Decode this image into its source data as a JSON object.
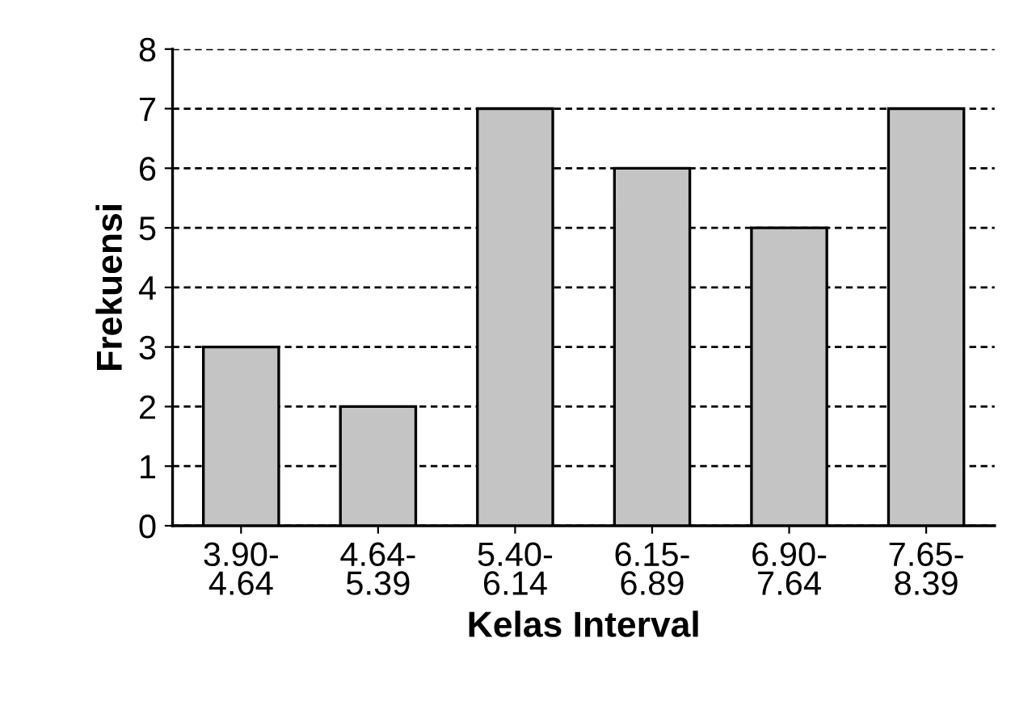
{
  "chart_data": {
    "type": "bar",
    "xlabel": "Kelas Interval",
    "ylabel": "Frekuensi",
    "categories": [
      "3.90-\n4.64",
      "4.64-\n5.39",
      "5.40-\n6.14",
      "6.15-\n6.89",
      "6.90-\n7.64",
      "7.65-\n8.39"
    ],
    "values": [
      3,
      2,
      7,
      6,
      5,
      7
    ],
    "color": "#c4c4c4",
    "ylim": [
      0,
      8
    ],
    "yticks": [
      0,
      1,
      2,
      3,
      4,
      5,
      6,
      7,
      8
    ],
    "grid": "y",
    "line_style": "dashed"
  }
}
